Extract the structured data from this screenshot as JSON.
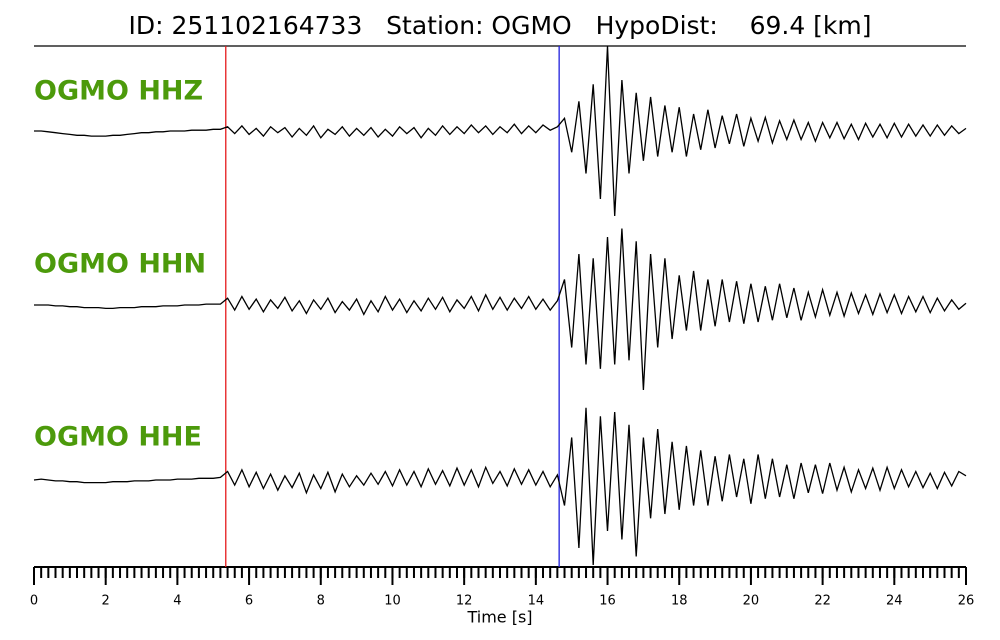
{
  "chart_data": {
    "type": "seismogram",
    "title": "ID: 251102164733   Station: OGMO   HypoDist:    69.4 [km]",
    "x_label": "Time [s]",
    "xlim": [
      0,
      26
    ],
    "xticks": [
      0,
      2,
      4,
      6,
      8,
      10,
      12,
      14,
      16,
      18,
      20,
      22,
      24,
      26
    ],
    "xminor_step": 0.2,
    "ylim": [
      -1,
      1
    ],
    "label_color": "#4c9a0b",
    "picks": [
      {
        "x": 5.35,
        "color": "#e41a1c"
      },
      {
        "x": 14.65,
        "color": "#1f1fdc"
      }
    ],
    "x": [
      0,
      0.2,
      0.4,
      0.6,
      0.8,
      1,
      1.2,
      1.4,
      1.6,
      1.8,
      2,
      2.2,
      2.4,
      2.6,
      2.8,
      3,
      3.2,
      3.4,
      3.6,
      3.8,
      4,
      4.2,
      4.4,
      4.6,
      4.8,
      5,
      5.2,
      5.4,
      5.6,
      5.8,
      6,
      6.2,
      6.4,
      6.6,
      6.8,
      7,
      7.2,
      7.4,
      7.6,
      7.8,
      8,
      8.2,
      8.4,
      8.6,
      8.8,
      9,
      9.2,
      9.4,
      9.6,
      9.8,
      10,
      10.2,
      10.4,
      10.6,
      10.8,
      11,
      11.2,
      11.4,
      11.6,
      11.8,
      12,
      12.2,
      12.4,
      12.6,
      12.8,
      13,
      13.2,
      13.4,
      13.6,
      13.8,
      14,
      14.2,
      14.4,
      14.6,
      14.8,
      15,
      15.2,
      15.4,
      15.6,
      15.8,
      16,
      16.2,
      16.4,
      16.6,
      16.8,
      17,
      17.2,
      17.4,
      17.6,
      17.8,
      18,
      18.2,
      18.4,
      18.6,
      18.8,
      19,
      19.2,
      19.4,
      19.6,
      19.8,
      20,
      20.2,
      20.4,
      20.6,
      20.8,
      21,
      21.2,
      21.4,
      21.6,
      21.8,
      22,
      22.2,
      22.4,
      22.6,
      22.8,
      23,
      23.2,
      23.4,
      23.6,
      23.8,
      24,
      24.2,
      24.4,
      24.6,
      24.8,
      25,
      25.2,
      25.4,
      25.6,
      25.8,
      26
    ],
    "series": [
      {
        "name": "OGMO HHZ",
        "color": "#000000",
        "values": [
          0,
          0,
          -0.01,
          -0.02,
          -0.03,
          -0.04,
          -0.05,
          -0.05,
          -0.06,
          -0.06,
          -0.06,
          -0.05,
          -0.05,
          -0.04,
          -0.03,
          -0.02,
          -0.02,
          -0.01,
          -0.01,
          0,
          0,
          0,
          0.01,
          0.01,
          0.01,
          0.02,
          0.02,
          0.05,
          -0.03,
          0.06,
          -0.04,
          0.03,
          -0.06,
          0.05,
          -0.02,
          0.04,
          -0.07,
          0.03,
          -0.05,
          0.06,
          -0.08,
          0.02,
          -0.04,
          0.05,
          -0.06,
          0.03,
          -0.05,
          0.04,
          -0.07,
          0.02,
          -0.06,
          0.05,
          -0.03,
          0.04,
          -0.08,
          0.03,
          -0.05,
          0.06,
          -0.04,
          0.05,
          -0.03,
          0.07,
          -0.02,
          0.06,
          -0.04,
          0.05,
          -0.02,
          0.08,
          -0.03,
          0.06,
          -0.02,
          0.07,
          0.01,
          0.05,
          0.15,
          -0.25,
          0.35,
          -0.5,
          0.55,
          -0.8,
          1.0,
          -1.0,
          0.6,
          -0.5,
          0.45,
          -0.35,
          0.4,
          -0.3,
          0.3,
          -0.25,
          0.28,
          -0.3,
          0.2,
          -0.22,
          0.25,
          -0.2,
          0.18,
          -0.15,
          0.2,
          -0.18,
          0.15,
          -0.12,
          0.16,
          -0.14,
          0.12,
          -0.1,
          0.13,
          -0.1,
          0.1,
          -0.12,
          0.1,
          -0.08,
          0.1,
          -0.09,
          0.08,
          -0.1,
          0.09,
          -0.07,
          0.08,
          -0.08,
          0.09,
          -0.07,
          0.08,
          -0.06,
          0.07,
          -0.06,
          0.07,
          -0.05,
          0.06,
          -0.03,
          0.03
        ]
      },
      {
        "name": "OGMO HHN",
        "color": "#000000",
        "values": [
          0,
          0,
          0,
          -0.01,
          -0.01,
          -0.02,
          -0.02,
          -0.03,
          -0.03,
          -0.03,
          -0.04,
          -0.04,
          -0.03,
          -0.03,
          -0.03,
          -0.02,
          -0.02,
          -0.02,
          -0.01,
          -0.01,
          -0.01,
          0,
          0,
          0,
          0.01,
          0.01,
          0.01,
          0.08,
          -0.06,
          0.1,
          -0.05,
          0.07,
          -0.08,
          0.06,
          -0.04,
          0.09,
          -0.07,
          0.05,
          -0.1,
          0.06,
          -0.05,
          0.08,
          -0.09,
          0.04,
          -0.06,
          0.07,
          -0.11,
          0.05,
          -0.08,
          0.1,
          -0.06,
          0.07,
          -0.09,
          0.05,
          -0.07,
          0.08,
          -0.05,
          0.09,
          -0.08,
          0.06,
          -0.04,
          0.1,
          -0.07,
          0.12,
          -0.05,
          0.09,
          -0.06,
          0.08,
          -0.04,
          0.1,
          -0.05,
          0.07,
          -0.06,
          0.05,
          0.3,
          -0.5,
          0.6,
          -0.7,
          0.55,
          -0.75,
          0.8,
          -0.7,
          0.9,
          -0.65,
          0.75,
          -1.0,
          0.6,
          -0.5,
          0.55,
          -0.4,
          0.35,
          -0.3,
          0.4,
          -0.3,
          0.3,
          -0.25,
          0.3,
          -0.2,
          0.28,
          -0.22,
          0.25,
          -0.2,
          0.22,
          -0.18,
          0.25,
          -0.15,
          0.2,
          -0.18,
          0.15,
          -0.14,
          0.18,
          -0.12,
          0.15,
          -0.13,
          0.14,
          -0.1,
          0.12,
          -0.11,
          0.13,
          -0.09,
          0.12,
          -0.1,
          0.1,
          -0.08,
          0.1,
          -0.09,
          0.08,
          -0.07,
          0.06,
          -0.05,
          0.02
        ]
      },
      {
        "name": "OGMO HHE",
        "color": "#000000",
        "values": [
          0,
          0.01,
          0,
          -0.01,
          -0.01,
          -0.02,
          -0.02,
          -0.03,
          -0.03,
          -0.03,
          -0.03,
          -0.02,
          -0.02,
          -0.02,
          -0.01,
          -0.01,
          -0.01,
          0,
          0,
          0,
          0.01,
          0.01,
          0.01,
          0.02,
          0.02,
          0.02,
          0.03,
          0.1,
          -0.06,
          0.12,
          -0.08,
          0.09,
          -0.1,
          0.07,
          -0.12,
          0.05,
          -0.09,
          0.08,
          -0.15,
          0.06,
          -0.1,
          0.09,
          -0.14,
          0.07,
          -0.08,
          0.05,
          -0.06,
          0.08,
          -0.05,
          0.1,
          -0.07,
          0.12,
          -0.06,
          0.1,
          -0.08,
          0.13,
          -0.05,
          0.11,
          -0.07,
          0.14,
          -0.06,
          0.12,
          -0.08,
          0.15,
          -0.04,
          0.1,
          -0.07,
          0.13,
          -0.05,
          0.12,
          -0.06,
          0.1,
          -0.08,
          0.06,
          -0.3,
          0.5,
          -0.8,
          0.85,
          -1.0,
          0.75,
          -0.6,
          0.8,
          -0.7,
          0.65,
          -0.9,
          0.5,
          -0.45,
          0.6,
          -0.4,
          0.45,
          -0.35,
          0.4,
          -0.3,
          0.35,
          -0.3,
          0.28,
          -0.25,
          0.3,
          -0.2,
          0.25,
          -0.28,
          0.3,
          -0.22,
          0.25,
          -0.2,
          0.18,
          -0.22,
          0.2,
          -0.15,
          0.18,
          -0.16,
          0.2,
          -0.12,
          0.15,
          -0.14,
          0.12,
          -0.1,
          0.14,
          -0.12,
          0.15,
          -0.1,
          0.12,
          -0.08,
          0.1,
          -0.09,
          0.08,
          -0.1,
          0.09,
          -0.07,
          0.1,
          0.05
        ]
      }
    ]
  }
}
